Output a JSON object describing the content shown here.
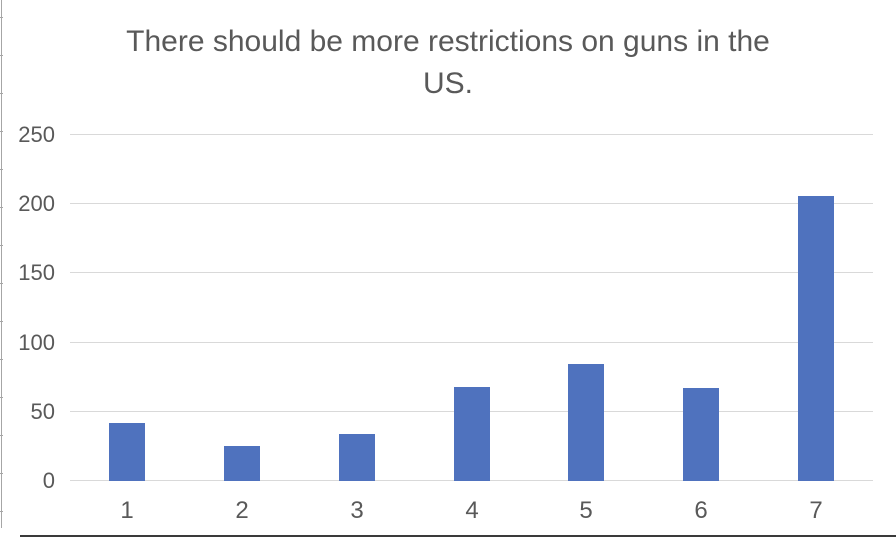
{
  "chart_data": {
    "type": "bar",
    "title": "There should be more restrictions on guns in the US.",
    "categories": [
      "1",
      "2",
      "3",
      "4",
      "5",
      "6",
      "7"
    ],
    "values": [
      42,
      25,
      34,
      68,
      84,
      67,
      205
    ],
    "xlabel": "",
    "ylabel": "",
    "ylim": [
      0,
      250
    ],
    "yticks": [
      0,
      50,
      100,
      150,
      200,
      250
    ],
    "grid": "horizontal",
    "legend": "none",
    "bar_color": "#4f72be",
    "gridline_color": "#d9d9d9",
    "text_color": "#595959"
  }
}
